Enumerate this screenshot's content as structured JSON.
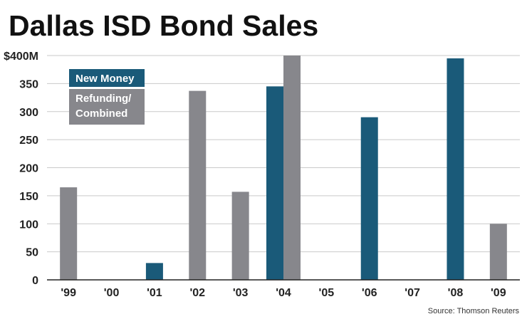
{
  "chart_data": {
    "type": "bar",
    "title": "Dallas ISD Bond Sales",
    "source": "Source: Thomson Reuters",
    "categories": [
      "'99",
      "'00",
      "'01",
      "'02",
      "'03",
      "'04",
      "'05",
      "'06",
      "'07",
      "'08",
      "'09"
    ],
    "series": [
      {
        "name": "New Money",
        "color": "#1a5a79",
        "values": [
          0,
          0,
          30,
          0,
          0,
          345,
          0,
          290,
          0,
          395,
          0
        ]
      },
      {
        "name": "Refunding/ Combined",
        "name_lines": [
          "Refunding/",
          "Combined"
        ],
        "color": "#87878c",
        "values": [
          165,
          0,
          0,
          337,
          157,
          400,
          0,
          0,
          0,
          0,
          100
        ]
      }
    ],
    "ylim": [
      0,
      400
    ],
    "yticks": [
      0,
      50,
      100,
      150,
      200,
      250,
      300,
      350,
      400
    ],
    "ytick_labels": [
      "0",
      "50",
      "100",
      "150",
      "200",
      "250",
      "300",
      "350",
      "$400M"
    ],
    "grid": true,
    "legend": "top-left"
  }
}
